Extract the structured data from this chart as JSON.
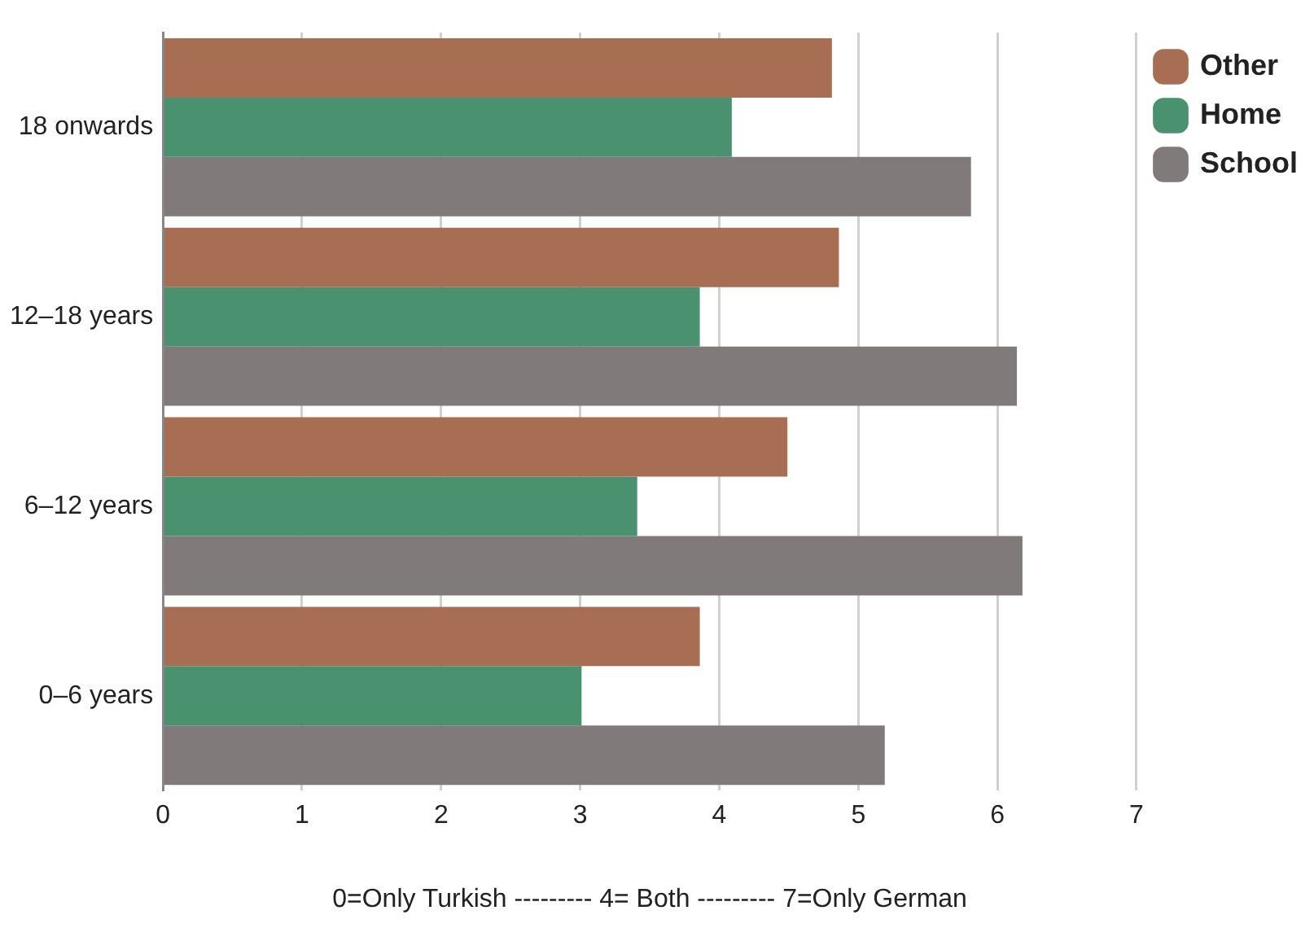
{
  "chart_data": {
    "type": "bar",
    "orientation": "horizontal",
    "xlabel": "0=Only Turkish --------- 4= Both --------- 7=Only German",
    "categories": [
      "18 onwards",
      "12–18 years",
      "6–12 years",
      "0–6 years"
    ],
    "series": [
      {
        "name": "Other",
        "color": "#a86e53",
        "values": [
          4.81,
          4.86,
          4.49,
          3.86
        ]
      },
      {
        "name": "Home",
        "color": "#4a9170",
        "values": [
          4.09,
          3.86,
          3.41,
          3.01
        ]
      },
      {
        "name": "School",
        "color": "#807a7b",
        "values": [
          5.81,
          6.14,
          6.18,
          5.19
        ]
      }
    ],
    "xlim": [
      0,
      7
    ],
    "xticks": [
      0,
      1,
      2,
      3,
      4,
      5,
      6,
      7
    ],
    "grid": "x",
    "legend": "top right"
  }
}
